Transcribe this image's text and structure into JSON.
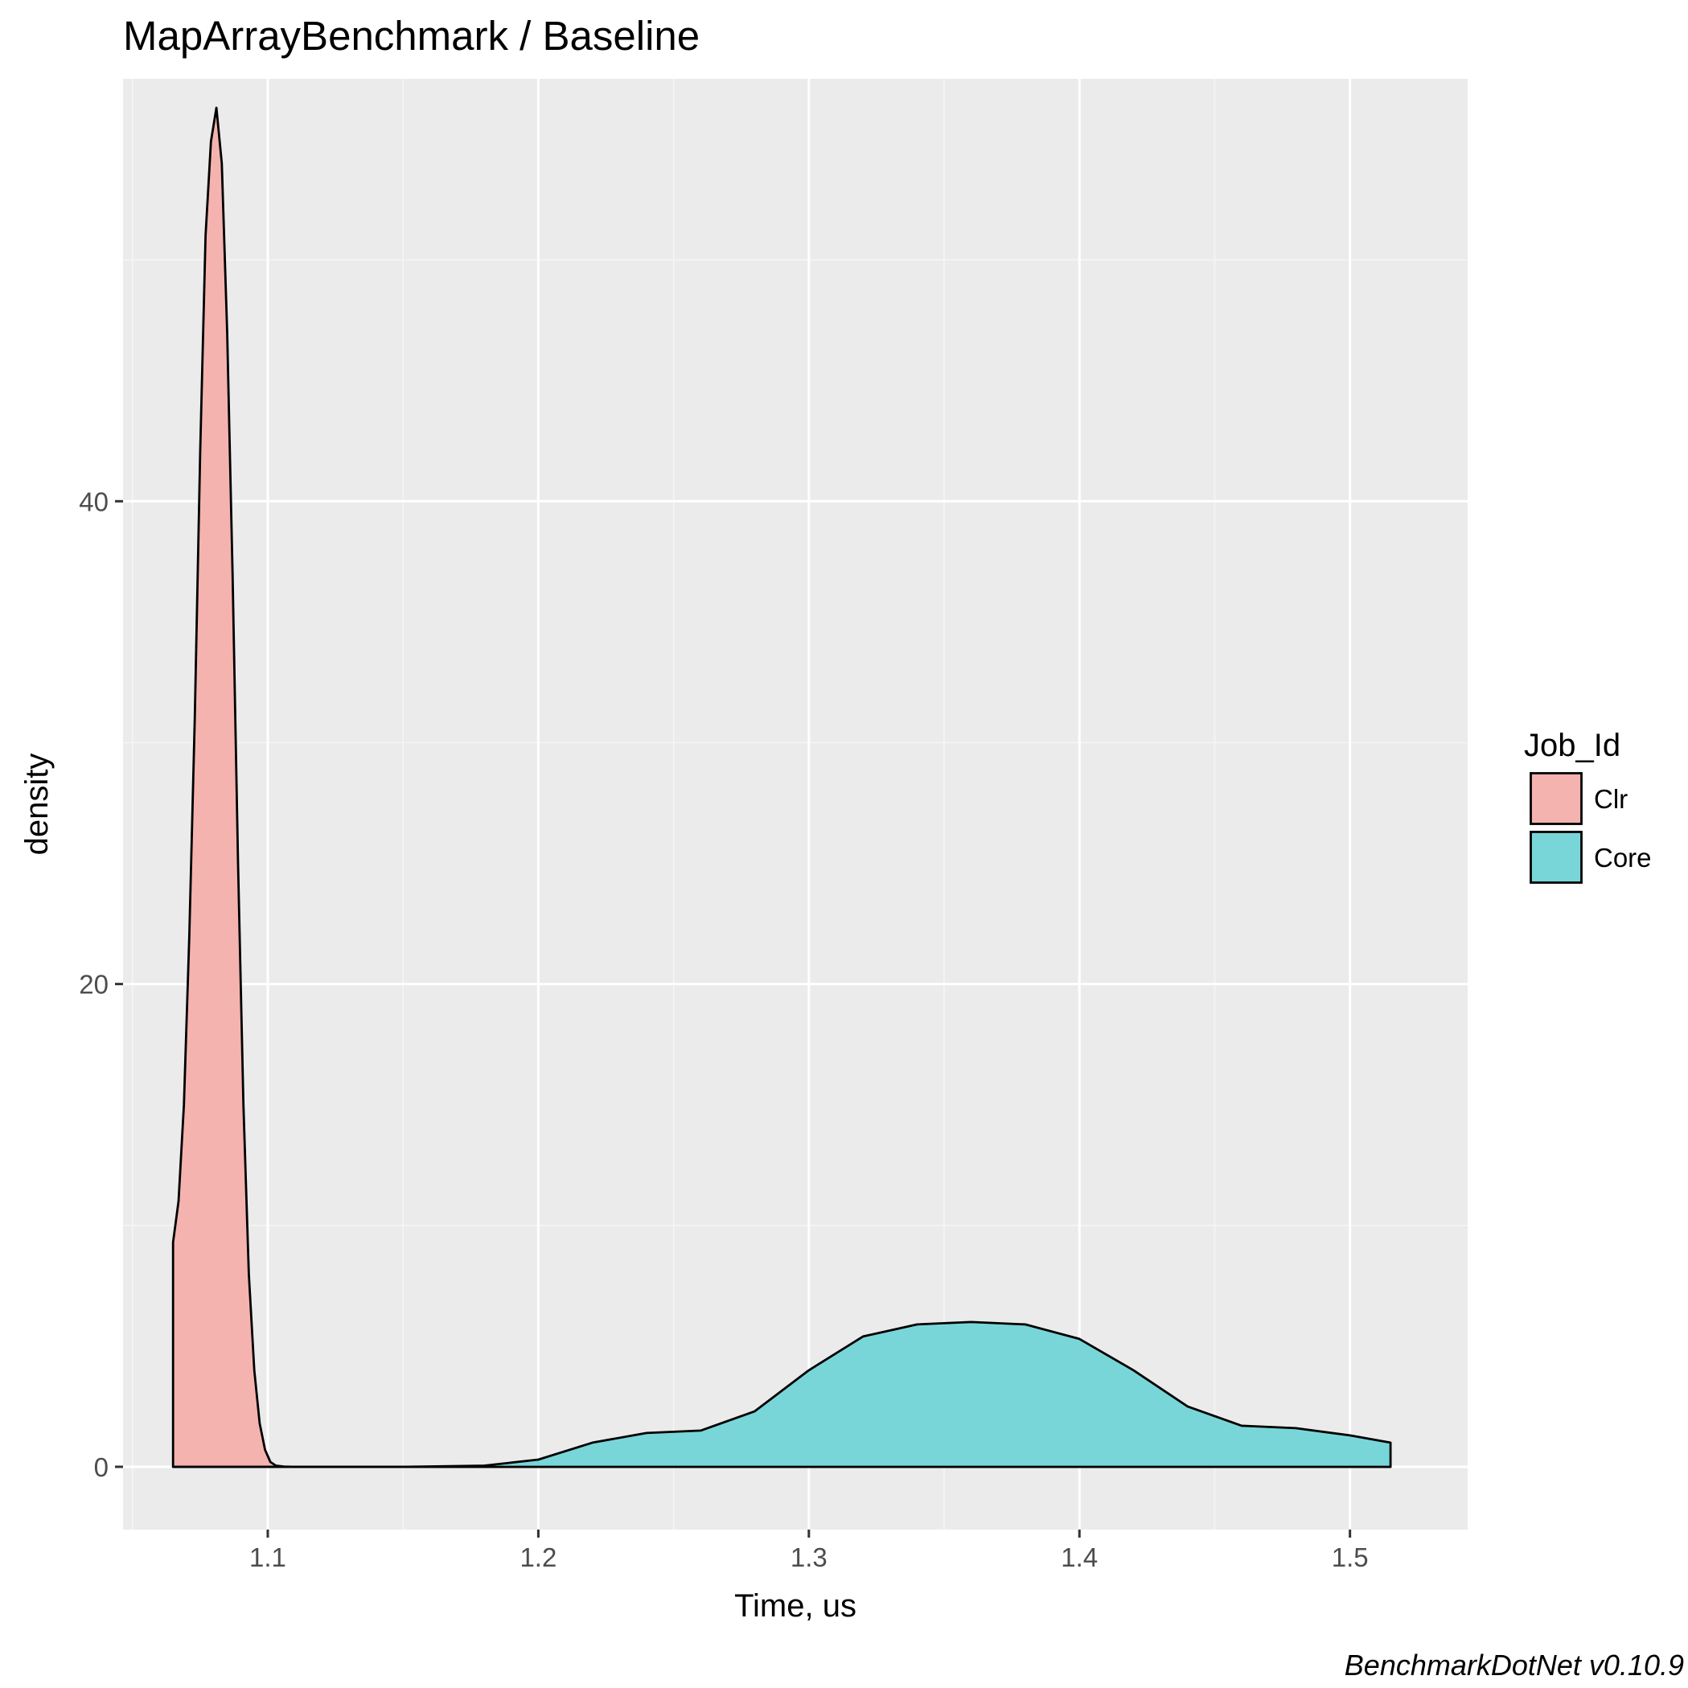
{
  "chart_data": {
    "type": "area",
    "title": "MapArrayBenchmark / Baseline",
    "xlabel": "Time, us",
    "ylabel": "density",
    "caption": "BenchmarkDotNet v0.10.9",
    "xlim": [
      1.0465,
      1.5435
    ],
    "ylim": [
      -2.6,
      57.5
    ],
    "x_ticks": [
      1.1,
      1.2,
      1.3,
      1.4,
      1.5
    ],
    "x_tick_labels": [
      "1.1",
      "1.2",
      "1.3",
      "1.4",
      "1.5"
    ],
    "y_ticks": [
      0,
      20,
      40
    ],
    "y_tick_labels": [
      "0",
      "20",
      "40"
    ],
    "grid": true,
    "legend": {
      "title": "Job_Id",
      "position": "right"
    },
    "series": [
      {
        "name": "Clr",
        "color": "#F8766D",
        "fill": "#F4B3AF",
        "x": [
          1.065,
          1.065,
          1.067,
          1.069,
          1.071,
          1.073,
          1.075,
          1.077,
          1.079,
          1.081,
          1.083,
          1.085,
          1.087,
          1.089,
          1.091,
          1.093,
          1.095,
          1.097,
          1.099,
          1.101,
          1.103,
          1.106,
          1.11,
          1.12,
          1.15,
          1.18,
          1.2,
          1.3,
          1.4,
          1.5,
          1.515,
          1.515
        ],
        "y": [
          0,
          9.3,
          11,
          15,
          22,
          31,
          42,
          51,
          54.9,
          56.3,
          54,
          47,
          37,
          25,
          15,
          8,
          4,
          1.8,
          0.7,
          0.2,
          0.05,
          0.01,
          0,
          0,
          0,
          0,
          0,
          0,
          0,
          0,
          0,
          0
        ]
      },
      {
        "name": "Core",
        "color": "#00BFC4",
        "fill": "#79D6D8",
        "x": [
          1.065,
          1.1,
          1.15,
          1.18,
          1.2,
          1.22,
          1.24,
          1.26,
          1.28,
          1.3,
          1.32,
          1.34,
          1.36,
          1.38,
          1.4,
          1.42,
          1.44,
          1.46,
          1.48,
          1.5,
          1.515,
          1.515
        ],
        "y": [
          0,
          0,
          0,
          0.05,
          0.3,
          1.0,
          1.4,
          1.5,
          2.3,
          4.0,
          5.4,
          5.9,
          6.0,
          5.9,
          5.3,
          4.0,
          2.5,
          1.7,
          1.6,
          1.3,
          1.0,
          0
        ]
      }
    ]
  }
}
